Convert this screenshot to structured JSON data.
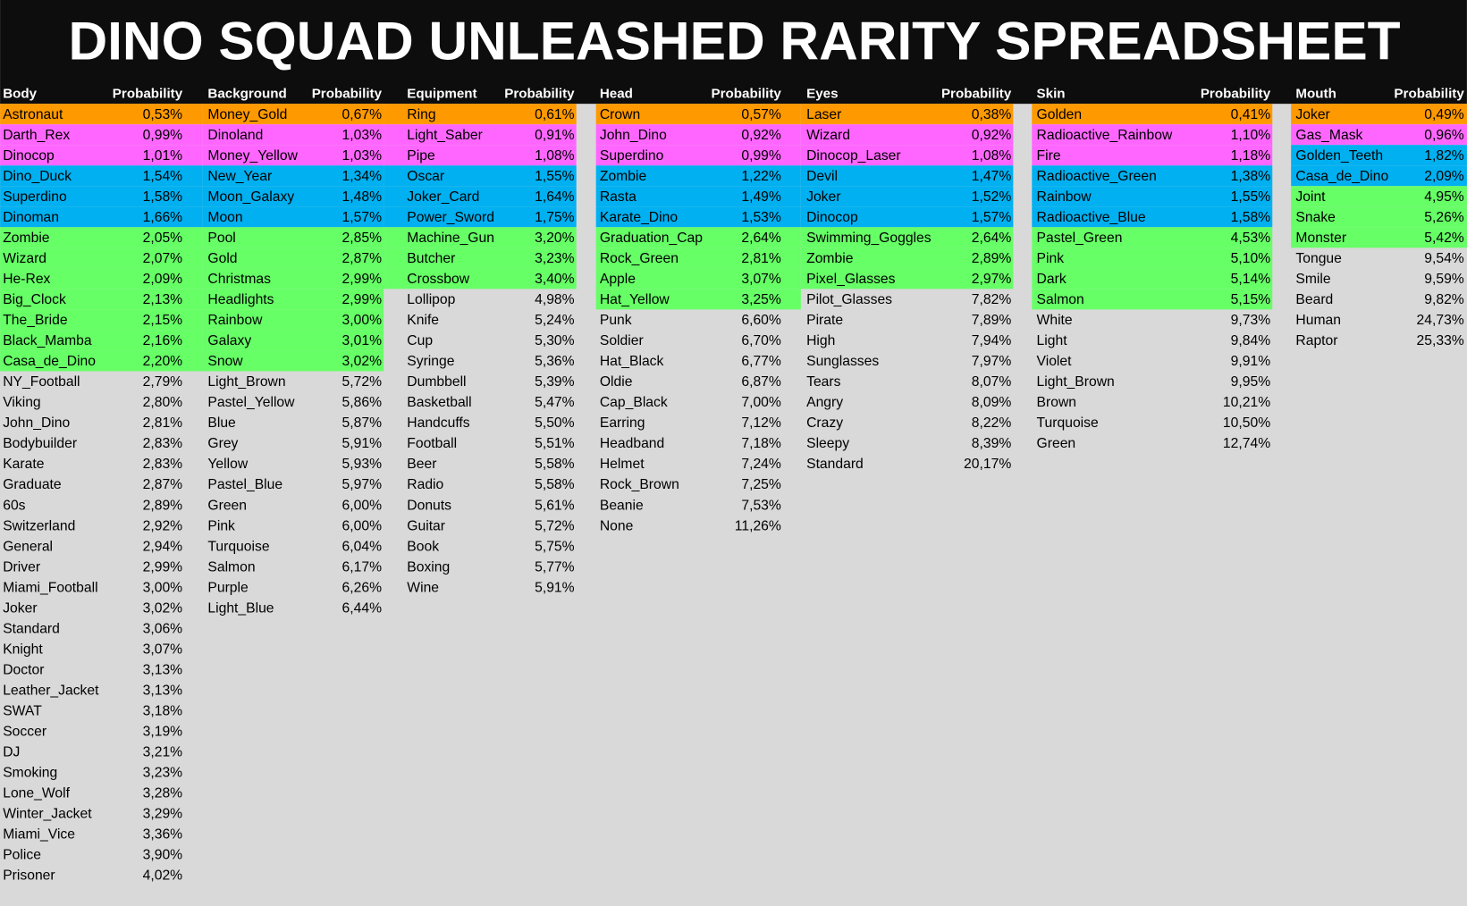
{
  "title": "DINO SQUAD UNLEASHED RARITY SPREADSHEET",
  "columns": [
    {
      "header": [
        "Body",
        "Probability"
      ],
      "rows": [
        [
          "Astronaut",
          "0,53%"
        ],
        [
          "Darth_Rex",
          "0,99%"
        ],
        [
          "Dinocop",
          "1,01%"
        ],
        [
          "Dino_Duck",
          "1,54%"
        ],
        [
          "Superdino",
          "1,58%"
        ],
        [
          "Dinoman",
          "1,66%"
        ],
        [
          "Zombie",
          "2,05%"
        ],
        [
          "Wizard",
          "2,07%"
        ],
        [
          "He-Rex",
          "2,09%"
        ],
        [
          "Big_Clock",
          "2,13%"
        ],
        [
          "The_Bride",
          "2,15%"
        ],
        [
          "Black_Mamba",
          "2,16%"
        ],
        [
          "Casa_de_Dino",
          "2,20%"
        ],
        [
          "NY_Football",
          "2,79%"
        ],
        [
          "Viking",
          "2,80%"
        ],
        [
          "John_Dino",
          "2,81%"
        ],
        [
          "Bodybuilder",
          "2,83%"
        ],
        [
          "Karate",
          "2,83%"
        ],
        [
          "Graduate",
          "2,87%"
        ],
        [
          "60s",
          "2,89%"
        ],
        [
          "Switzerland",
          "2,92%"
        ],
        [
          "General",
          "2,94%"
        ],
        [
          "Driver",
          "2,99%"
        ],
        [
          "Miami_Football",
          "3,00%"
        ],
        [
          "Joker",
          "3,02%"
        ],
        [
          "Standard",
          "3,06%"
        ],
        [
          "Knight",
          "3,07%"
        ],
        [
          "Doctor",
          "3,13%"
        ],
        [
          "Leather_Jacket",
          "3,13%"
        ],
        [
          "SWAT",
          "3,18%"
        ],
        [
          "Soccer",
          "3,19%"
        ],
        [
          "DJ",
          "3,21%"
        ],
        [
          "Smoking",
          "3,23%"
        ],
        [
          "Lone_Wolf",
          "3,28%"
        ],
        [
          "Winter_Jacket",
          "3,29%"
        ],
        [
          "Miami_Vice",
          "3,36%"
        ],
        [
          "Police",
          "3,90%"
        ],
        [
          "Prisoner",
          "4,02%"
        ]
      ],
      "fills": [
        "#ff9900",
        "#ff66ff",
        "#ff66ff",
        "#00b0f0",
        "#00b0f0",
        "#00b0f0",
        "#66ff66",
        "#66ff66",
        "#66ff66",
        "#66ff66",
        "#66ff66",
        "#66ff66",
        "#66ff66",
        null,
        null,
        null,
        null,
        null,
        null,
        null,
        null,
        null,
        null,
        null,
        null,
        null,
        null,
        null,
        null,
        null,
        null,
        null,
        null,
        null,
        null,
        null,
        null,
        null
      ]
    },
    {
      "header": [
        "Background",
        "Probability"
      ],
      "rows": [
        [
          "Money_Gold",
          "0,67%"
        ],
        [
          "Dinoland",
          "1,03%"
        ],
        [
          "Money_Yellow",
          "1,03%"
        ],
        [
          "New_Year",
          "1,34%"
        ],
        [
          "Moon_Galaxy",
          "1,48%"
        ],
        [
          "Moon",
          "1,57%"
        ],
        [
          "Pool",
          "2,85%"
        ],
        [
          "Gold",
          "2,87%"
        ],
        [
          "Christmas",
          "2,99%"
        ],
        [
          "Headlights",
          "2,99%"
        ],
        [
          "Rainbow",
          "3,00%"
        ],
        [
          "Galaxy",
          "3,01%"
        ],
        [
          "Snow",
          "3,02%"
        ],
        [
          "Light_Brown",
          "5,72%"
        ],
        [
          "Pastel_Yellow",
          "5,86%"
        ],
        [
          "Blue",
          "5,87%"
        ],
        [
          "Grey",
          "5,91%"
        ],
        [
          "Yellow",
          "5,93%"
        ],
        [
          "Pastel_Blue",
          "5,97%"
        ],
        [
          "Green",
          "6,00%"
        ],
        [
          "Pink",
          "6,00%"
        ],
        [
          "Turquoise",
          "6,04%"
        ],
        [
          "Salmon",
          "6,17%"
        ],
        [
          "Purple",
          "6,26%"
        ],
        [
          "Light_Blue",
          "6,44%"
        ]
      ],
      "fills": [
        "#ff9900",
        "#ff66ff",
        "#ff66ff",
        "#00b0f0",
        "#00b0f0",
        "#00b0f0",
        "#66ff66",
        "#66ff66",
        "#66ff66",
        "#66ff66",
        "#66ff66",
        "#66ff66",
        "#66ff66",
        null,
        null,
        null,
        null,
        null,
        null,
        null,
        null,
        null,
        null,
        null,
        null
      ]
    },
    {
      "header": [
        "Equipment",
        "Probability"
      ],
      "rows": [
        [
          "Ring",
          "0,61%"
        ],
        [
          "Light_Saber",
          "0,91%"
        ],
        [
          "Pipe",
          "1,08%"
        ],
        [
          "Oscar",
          "1,55%"
        ],
        [
          "Joker_Card",
          "1,64%"
        ],
        [
          "Power_Sword",
          "1,75%"
        ],
        [
          "Machine_Gun",
          "3,20%"
        ],
        [
          "Butcher",
          "3,23%"
        ],
        [
          "Crossbow",
          "3,40%"
        ],
        [
          "Lollipop",
          "4,98%"
        ],
        [
          "Knife",
          "5,24%"
        ],
        [
          "Cup",
          "5,30%"
        ],
        [
          "Syringe",
          "5,36%"
        ],
        [
          "Dumbbell",
          "5,39%"
        ],
        [
          "Basketball",
          "5,47%"
        ],
        [
          "Handcuffs",
          "5,50%"
        ],
        [
          "Football",
          "5,51%"
        ],
        [
          "Beer",
          "5,58%"
        ],
        [
          "Radio",
          "5,58%"
        ],
        [
          "Donuts",
          "5,61%"
        ],
        [
          "Guitar",
          "5,72%"
        ],
        [
          "Book",
          "5,75%"
        ],
        [
          "Boxing",
          "5,77%"
        ],
        [
          "Wine",
          "5,91%"
        ]
      ],
      "fills": [
        "#ff9900",
        "#ff66ff",
        "#ff66ff",
        "#00b0f0",
        "#00b0f0",
        "#00b0f0",
        "#66ff66",
        "#66ff66",
        "#66ff66",
        null,
        null,
        null,
        null,
        null,
        null,
        null,
        null,
        null,
        null,
        null,
        null,
        null,
        null,
        null
      ]
    },
    {
      "header": [
        "Head",
        "Probability"
      ],
      "rows": [
        [
          "Crown",
          "0,57%"
        ],
        [
          "John_Dino",
          "0,92%"
        ],
        [
          "Superdino",
          "0,99%"
        ],
        [
          "Zombie",
          "1,22%"
        ],
        [
          "Rasta",
          "1,49%"
        ],
        [
          "Karate_Dino",
          "1,53%"
        ],
        [
          "Graduation_Cap",
          "2,64%"
        ],
        [
          "Rock_Green",
          "2,81%"
        ],
        [
          "Apple",
          "3,07%"
        ],
        [
          "Hat_Yellow",
          "3,25%"
        ],
        [
          "Punk",
          "6,60%"
        ],
        [
          "Soldier",
          "6,70%"
        ],
        [
          "Hat_Black",
          "6,77%"
        ],
        [
          "Oldie",
          "6,87%"
        ],
        [
          "Cap_Black",
          "7,00%"
        ],
        [
          "Earring",
          "7,12%"
        ],
        [
          "Headband",
          "7,18%"
        ],
        [
          "Helmet",
          "7,24%"
        ],
        [
          "Rock_Brown",
          "7,25%"
        ],
        [
          "Beanie",
          "7,53%"
        ],
        [
          "None",
          "11,26%"
        ]
      ],
      "fills": [
        "#ff9900",
        "#ff66ff",
        "#ff66ff",
        "#00b0f0",
        "#00b0f0",
        "#00b0f0",
        "#66ff66",
        "#66ff66",
        "#66ff66",
        "#66ff66",
        null,
        null,
        null,
        null,
        null,
        null,
        null,
        null,
        null,
        null,
        null
      ]
    },
    {
      "header": [
        "Eyes",
        "Probability"
      ],
      "rows": [
        [
          "Laser",
          "0,38%"
        ],
        [
          "Wizard",
          "0,92%"
        ],
        [
          "Dinocop_Laser",
          "1,08%"
        ],
        [
          "Devil",
          "1,47%"
        ],
        [
          "Joker",
          "1,52%"
        ],
        [
          "Dinocop",
          "1,57%"
        ],
        [
          "Swimming_Goggles",
          "2,64%"
        ],
        [
          "Zombie",
          "2,89%"
        ],
        [
          "Pixel_Glasses",
          "2,97%"
        ],
        [
          "Pilot_Glasses",
          "7,82%"
        ],
        [
          "Pirate",
          "7,89%"
        ],
        [
          "High",
          "7,94%"
        ],
        [
          "Sunglasses",
          "7,97%"
        ],
        [
          "Tears",
          "8,07%"
        ],
        [
          "Angry",
          "8,09%"
        ],
        [
          "Crazy",
          "8,22%"
        ],
        [
          "Sleepy",
          "8,39%"
        ],
        [
          "Standard",
          "20,17%"
        ]
      ],
      "fills": [
        "#ff9900",
        "#ff66ff",
        "#ff66ff",
        "#00b0f0",
        "#00b0f0",
        "#00b0f0",
        "#66ff66",
        "#66ff66",
        "#66ff66",
        null,
        null,
        null,
        null,
        null,
        null,
        null,
        null,
        null
      ]
    },
    {
      "header": [
        "Skin",
        "Probability"
      ],
      "rows": [
        [
          "Golden",
          "0,41%"
        ],
        [
          "Radioactive_Rainbow",
          "1,10%"
        ],
        [
          "Fire",
          "1,18%"
        ],
        [
          "Radioactive_Green",
          "1,38%"
        ],
        [
          "Rainbow",
          "1,55%"
        ],
        [
          "Radioactive_Blue",
          "1,58%"
        ],
        [
          "Pastel_Green",
          "4,53%"
        ],
        [
          "Pink",
          "5,10%"
        ],
        [
          "Dark",
          "5,14%"
        ],
        [
          "Salmon",
          "5,15%"
        ],
        [
          "White",
          "9,73%"
        ],
        [
          "Light",
          "9,84%"
        ],
        [
          "Violet",
          "9,91%"
        ],
        [
          "Light_Brown",
          "9,95%"
        ],
        [
          "Brown",
          "10,21%"
        ],
        [
          "Turquoise",
          "10,50%"
        ],
        [
          "Green",
          "12,74%"
        ]
      ],
      "fills": [
        "#ff9900",
        "#ff66ff",
        "#ff66ff",
        "#00b0f0",
        "#00b0f0",
        "#00b0f0",
        "#66ff66",
        "#66ff66",
        "#66ff66",
        "#66ff66",
        null,
        null,
        null,
        null,
        null,
        null,
        null
      ]
    },
    {
      "header": [
        "Mouth",
        "Probability"
      ],
      "rows": [
        [
          "Joker",
          "0,49%"
        ],
        [
          "Gas_Mask",
          "0,96%"
        ],
        [
          "Golden_Teeth",
          "1,82%"
        ],
        [
          "Casa_de_Dino",
          "2,09%"
        ],
        [
          "Joint",
          "4,95%"
        ],
        [
          "Snake",
          "5,26%"
        ],
        [
          "Monster",
          "5,42%"
        ],
        [
          "Tongue",
          "9,54%"
        ],
        [
          "Smile",
          "9,59%"
        ],
        [
          "Beard",
          "9,82%"
        ],
        [
          "Human",
          "24,73%"
        ],
        [
          "Raptor",
          "25,33%"
        ]
      ],
      "fills": [
        "#ff9900",
        "#ff66ff",
        "#00b0f0",
        "#00b0f0",
        "#66ff66",
        "#66ff66",
        "#66ff66",
        null,
        null,
        null,
        null,
        null
      ]
    }
  ]
}
